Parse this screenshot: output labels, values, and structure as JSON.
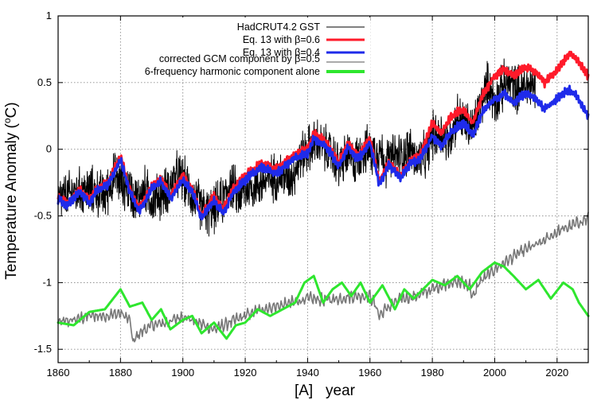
{
  "chart_data": {
    "type": "line",
    "title": "",
    "xlabel": "[A]   year",
    "ylabel": "Temperature Anomaly (",
    "ylabel_sup": "o",
    "ylabel_suffix": "C)",
    "xlim": [
      1860,
      2030
    ],
    "ylim": [
      -1.6,
      1.0
    ],
    "xticks": [
      1860,
      1880,
      1900,
      1920,
      1940,
      1960,
      1980,
      2000,
      2020
    ],
    "xtick_labels": [
      "1860",
      "1880",
      "1900",
      "1920",
      "1940",
      "1960",
      "1980",
      "2000",
      "2020"
    ],
    "yticks": [
      1,
      0.5,
      0,
      -0.5,
      -1,
      -1.5
    ],
    "ytick_labels": [
      "1",
      "0.5",
      "0",
      "-0.5",
      "-1",
      "-1.5"
    ],
    "grid": true,
    "legend_position": "top-center",
    "series": [
      {
        "name": "HadCRUT4.2 GST",
        "color": "#000000",
        "style": "thin-noisy",
        "x": [
          1860,
          1865,
          1870,
          1875,
          1878,
          1880,
          1883,
          1885,
          1888,
          1890,
          1893,
          1895,
          1898,
          1900,
          1903,
          1905,
          1908,
          1910,
          1913,
          1915,
          1918,
          1920,
          1925,
          1930,
          1935,
          1938,
          1940,
          1943,
          1945,
          1948,
          1950,
          1953,
          1955,
          1958,
          1960,
          1963,
          1965,
          1968,
          1970,
          1973,
          1975,
          1978,
          1980,
          1983,
          1985,
          1988,
          1990,
          1993,
          1995,
          1998,
          2000,
          2003,
          2005,
          2008,
          2010,
          2013
        ],
        "values": [
          -0.38,
          -0.33,
          -0.3,
          -0.35,
          -0.2,
          -0.25,
          -0.3,
          -0.38,
          -0.3,
          -0.38,
          -0.35,
          -0.3,
          -0.2,
          -0.22,
          -0.35,
          -0.4,
          -0.48,
          -0.45,
          -0.38,
          -0.25,
          -0.35,
          -0.3,
          -0.25,
          -0.2,
          -0.2,
          -0.05,
          0.0,
          0.05,
          0.02,
          -0.05,
          -0.12,
          -0.05,
          -0.1,
          0.0,
          -0.02,
          0.0,
          -0.1,
          -0.05,
          -0.05,
          0.0,
          -0.1,
          -0.05,
          0.1,
          0.12,
          0.05,
          0.25,
          0.2,
          0.15,
          0.3,
          0.5,
          0.35,
          0.48,
          0.5,
          0.45,
          0.48,
          0.47
        ],
        "noise": 0.18
      },
      {
        "name": "Eq. 13 with β=0.6",
        "color": "#ff1a2a",
        "style": "thick",
        "x": [
          1860,
          1863,
          1867,
          1870,
          1873,
          1876,
          1880,
          1883,
          1886,
          1890,
          1893,
          1896,
          1900,
          1903,
          1906,
          1910,
          1913,
          1916,
          1920,
          1925,
          1930,
          1935,
          1940,
          1942,
          1946,
          1950,
          1953,
          1956,
          1960,
          1963,
          1966,
          1970,
          1973,
          1976,
          1980,
          1983,
          1986,
          1990,
          1993,
          1996,
          2000,
          2003,
          2006,
          2010,
          2013,
          2016,
          2020,
          2024,
          2026,
          2030
        ],
        "values": [
          -0.36,
          -0.4,
          -0.3,
          -0.38,
          -0.28,
          -0.25,
          -0.05,
          -0.3,
          -0.45,
          -0.28,
          -0.22,
          -0.35,
          -0.2,
          -0.3,
          -0.5,
          -0.35,
          -0.45,
          -0.3,
          -0.2,
          -0.1,
          -0.15,
          -0.05,
          0.0,
          0.12,
          0.05,
          -0.1,
          0.05,
          -0.05,
          0.08,
          -0.25,
          -0.1,
          -0.2,
          -0.08,
          -0.05,
          0.2,
          0.12,
          0.25,
          0.3,
          0.2,
          0.4,
          0.55,
          0.6,
          0.55,
          0.62,
          0.58,
          0.5,
          0.6,
          0.72,
          0.68,
          0.55
        ]
      },
      {
        "name": "Eq. 13 with β=0.4",
        "color": "#1f2bea",
        "style": "thick",
        "x": [
          1860,
          1863,
          1867,
          1870,
          1873,
          1876,
          1880,
          1883,
          1886,
          1890,
          1893,
          1896,
          1900,
          1903,
          1906,
          1910,
          1913,
          1916,
          1920,
          1925,
          1930,
          1935,
          1940,
          1942,
          1946,
          1950,
          1953,
          1956,
          1960,
          1963,
          1966,
          1970,
          1973,
          1976,
          1980,
          1983,
          1986,
          1990,
          1993,
          1996,
          2000,
          2003,
          2006,
          2010,
          2013,
          2016,
          2020,
          2024,
          2026,
          2030
        ],
        "values": [
          -0.38,
          -0.42,
          -0.32,
          -0.4,
          -0.3,
          -0.27,
          -0.08,
          -0.32,
          -0.47,
          -0.3,
          -0.24,
          -0.37,
          -0.23,
          -0.32,
          -0.52,
          -0.38,
          -0.48,
          -0.33,
          -0.23,
          -0.13,
          -0.18,
          -0.08,
          -0.03,
          0.08,
          0.02,
          -0.13,
          0.02,
          -0.08,
          0.05,
          -0.27,
          -0.12,
          -0.22,
          -0.1,
          -0.08,
          0.1,
          0.02,
          0.13,
          0.2,
          0.1,
          0.28,
          0.38,
          0.42,
          0.35,
          0.42,
          0.38,
          0.3,
          0.38,
          0.45,
          0.4,
          0.25
        ]
      },
      {
        "name": "corrected GCM component by β=0.5",
        "color": "#777777",
        "style": "medium",
        "x": [
          1860,
          1865,
          1870,
          1875,
          1880,
          1883,
          1884,
          1886,
          1890,
          1895,
          1900,
          1905,
          1910,
          1915,
          1920,
          1925,
          1930,
          1935,
          1940,
          1945,
          1950,
          1955,
          1960,
          1962,
          1963,
          1965,
          1970,
          1975,
          1980,
          1985,
          1990,
          1992,
          1993,
          1995,
          2000,
          2005,
          2010,
          2015,
          2020,
          2025,
          2030
        ],
        "values": [
          -1.3,
          -1.28,
          -1.25,
          -1.25,
          -1.23,
          -1.28,
          -1.45,
          -1.38,
          -1.32,
          -1.3,
          -1.25,
          -1.3,
          -1.35,
          -1.3,
          -1.25,
          -1.2,
          -1.18,
          -1.15,
          -1.12,
          -1.13,
          -1.12,
          -1.1,
          -1.1,
          -1.18,
          -1.25,
          -1.2,
          -1.12,
          -1.1,
          -1.05,
          -1.0,
          -1.0,
          -1.02,
          -1.12,
          -1.0,
          -0.9,
          -0.82,
          -0.75,
          -0.7,
          -0.62,
          -0.57,
          -0.52
        ]
      },
      {
        "name": "6-frequency harmonic component alone",
        "color": "#2ee62e",
        "style": "thick",
        "x": [
          1860,
          1865,
          1870,
          1875,
          1880,
          1883,
          1887,
          1890,
          1893,
          1896,
          1900,
          1903,
          1906,
          1910,
          1914,
          1917,
          1920,
          1924,
          1928,
          1932,
          1936,
          1939,
          1942,
          1945,
          1948,
          1951,
          1954,
          1957,
          1960,
          1964,
          1968,
          1971,
          1974,
          1977,
          1980,
          1984,
          1988,
          1992,
          1996,
          2000,
          2003,
          2006,
          2010,
          2014,
          2018,
          2022,
          2025,
          2027,
          2030
        ],
        "values": [
          -1.3,
          -1.32,
          -1.22,
          -1.2,
          -1.05,
          -1.18,
          -1.15,
          -1.28,
          -1.2,
          -1.35,
          -1.28,
          -1.25,
          -1.38,
          -1.3,
          -1.42,
          -1.32,
          -1.3,
          -1.2,
          -1.25,
          -1.2,
          -1.15,
          -1.0,
          -0.95,
          -1.15,
          -1.05,
          -1.0,
          -1.1,
          -1.0,
          -1.15,
          -1.02,
          -1.2,
          -1.05,
          -1.12,
          -1.05,
          -0.98,
          -1.02,
          -0.95,
          -1.05,
          -0.92,
          -0.85,
          -0.88,
          -0.95,
          -1.05,
          -0.98,
          -1.12,
          -1.0,
          -1.05,
          -1.15,
          -1.25
        ]
      }
    ]
  }
}
